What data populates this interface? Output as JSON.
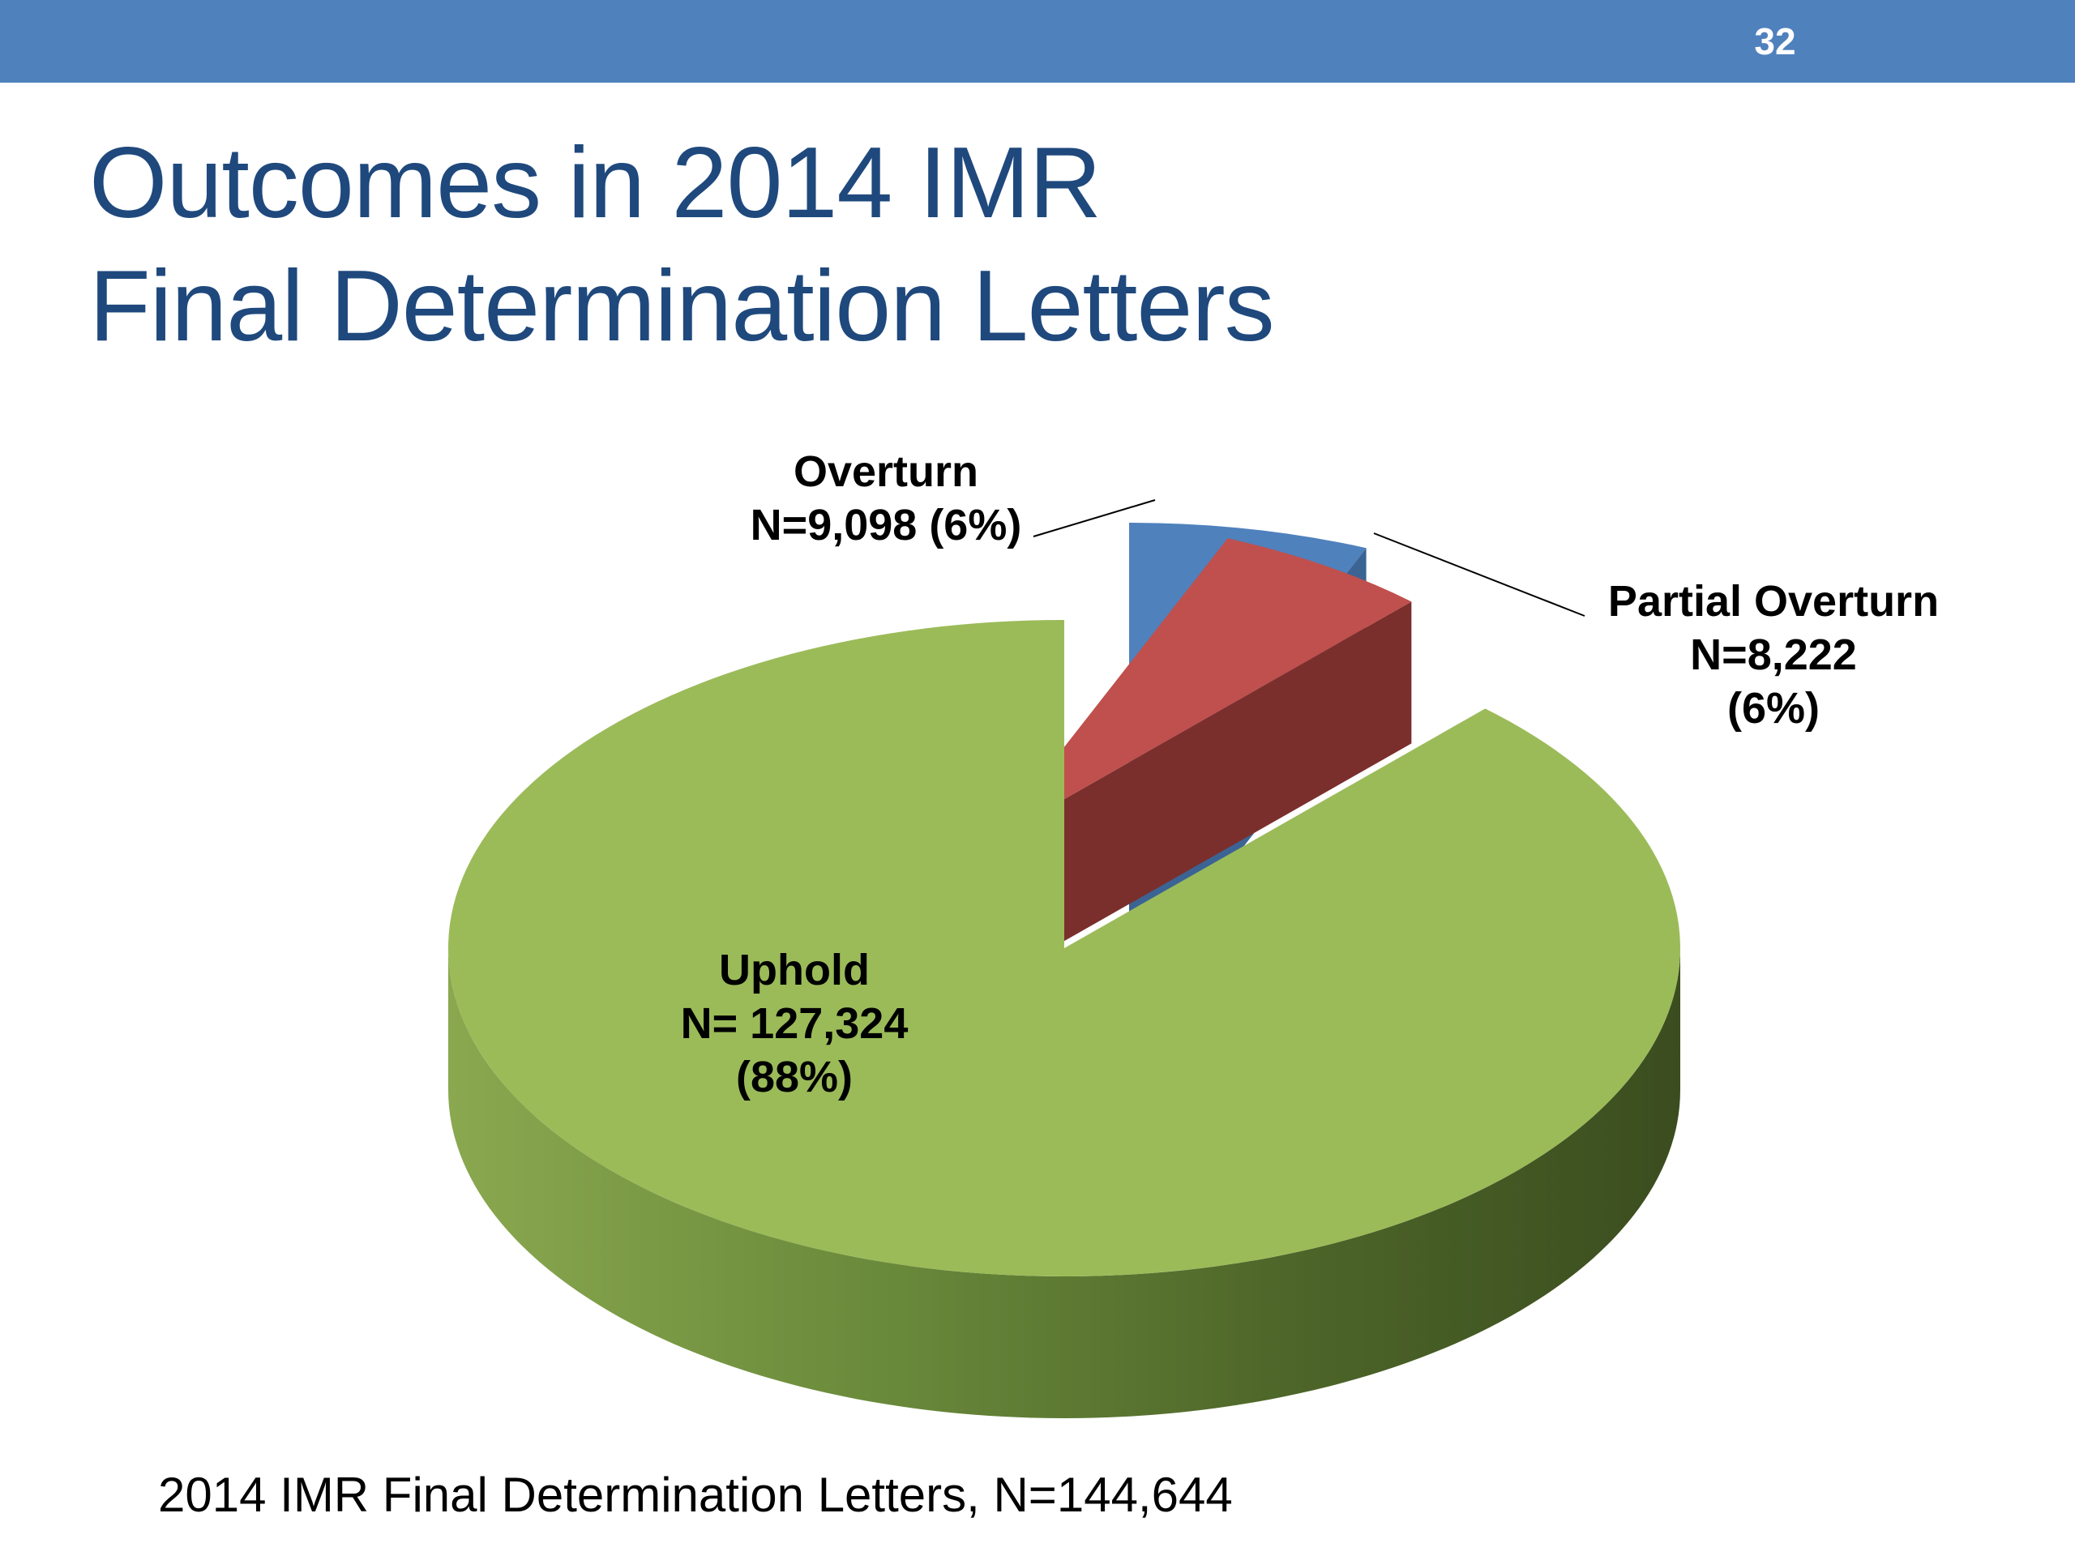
{
  "slide": {
    "page_number": "32",
    "title_lines": [
      "Outcomes in 2014 IMR",
      "Final Determination Letters"
    ],
    "footnote": "2014 IMR Final Determination Letters, N=144,644"
  },
  "chart_data": {
    "type": "pie",
    "total": 144644,
    "slices": [
      {
        "name": "Overturn",
        "value": 9098,
        "percent": 6,
        "color": "#4f81bd",
        "label_lines": [
          "Overturn",
          "N=9,098 (6%)"
        ]
      },
      {
        "name": "Partial Overturn",
        "value": 8222,
        "percent": 6,
        "color": "#c0504d",
        "label_lines": [
          "Partial Overturn",
          "N=8,222",
          "(6%)"
        ]
      },
      {
        "name": "Uphold",
        "value": 127324,
        "percent": 88,
        "color": "#9bbb59",
        "label_lines": [
          "Uphold",
          "N= 127,324",
          "(88%)"
        ]
      }
    ],
    "style": "3d exploded pie"
  }
}
